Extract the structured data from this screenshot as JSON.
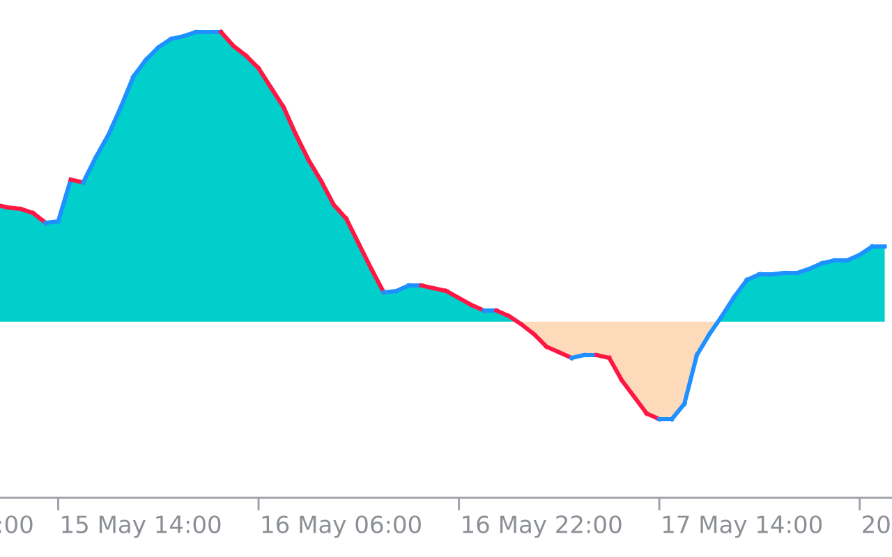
{
  "chart_data": {
    "type": "area",
    "categories": [
      ":00",
      null,
      null,
      null,
      null,
      null,
      null,
      null,
      null,
      null,
      null,
      null,
      null,
      null,
      null,
      null,
      "15 May 14:00",
      null,
      null,
      null,
      null,
      null,
      null,
      null,
      null,
      null,
      null,
      null,
      null,
      null,
      null,
      null,
      "16 May 06:00",
      null,
      null,
      null,
      null,
      null,
      null,
      null,
      null,
      null,
      null,
      null,
      null,
      null,
      null,
      null,
      "16 May 22:00",
      null,
      null,
      null,
      null,
      null,
      null,
      null,
      null,
      null,
      null,
      null,
      null,
      null,
      null,
      null,
      "17 May 14:00",
      null,
      null,
      null,
      null,
      null,
      null,
      null,
      null,
      null,
      null,
      null,
      null,
      null,
      null,
      null,
      "20",
      null,
      null,
      null
    ],
    "values": [
      null,
      null,
      null,
      null,
      null,
      null,
      null,
      null,
      null,
      null,
      null,
      42,
      41,
      40.5,
      39,
      35.5,
      36,
      51,
      50,
      59,
      67,
      77,
      88,
      94,
      98.5,
      101.5,
      102.5,
      104,
      104,
      104,
      99,
      95.5,
      91,
      84,
      77,
      67,
      58,
      50.5,
      42,
      37,
      28,
      19,
      10.5,
      11,
      13,
      13,
      12,
      11,
      8.5,
      6,
      4,
      4,
      2,
      -1,
      -4.5,
      -9,
      -11,
      -13,
      -12,
      -12,
      -13,
      -21,
      -27,
      -33,
      -35,
      -35,
      -29.5,
      -12,
      -4.5,
      2,
      9,
      15,
      17,
      17,
      17.5,
      17.5,
      19,
      21,
      22,
      22,
      24,
      27,
      27,
      null
    ],
    "ylim": [
      -63.25,
      115.5
    ],
    "up_color": "#1e90ff",
    "down_color": "#ff1744",
    "fill_positive_color": "#00cfcc",
    "fill_negative_color": "#fddab9",
    "axis_color": "#a0a4a8"
  }
}
